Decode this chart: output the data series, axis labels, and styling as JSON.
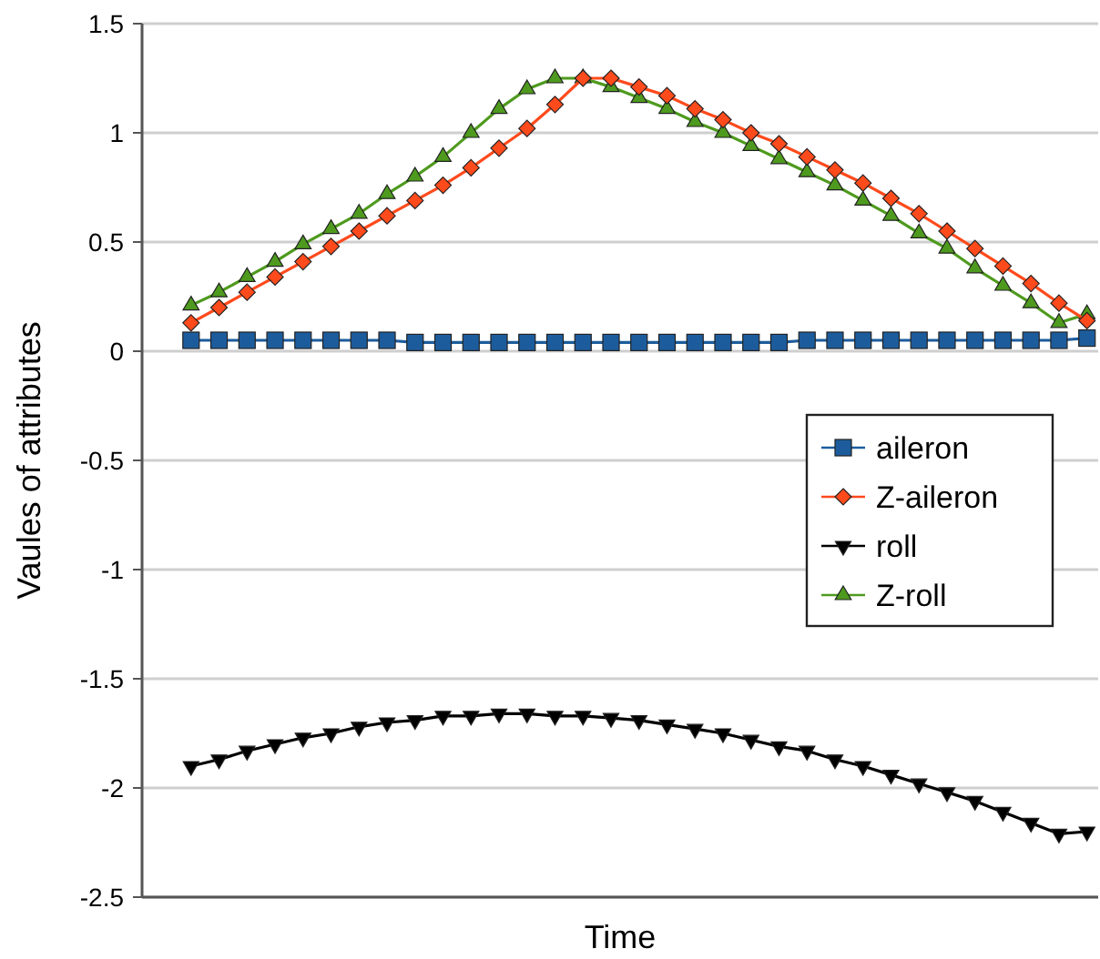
{
  "chart_data": {
    "type": "line",
    "xlabel": "Time",
    "ylabel": "Vaules of attributes",
    "categories": [
      null,
      null,
      null,
      null,
      null,
      null,
      null,
      null,
      null,
      null,
      null,
      null,
      null,
      null,
      null,
      null,
      null,
      null,
      null,
      null,
      null,
      null,
      null,
      null,
      null,
      null,
      null,
      null,
      null,
      null,
      null,
      null,
      null
    ],
    "ylim": [
      -2.5,
      1.5
    ],
    "yticks": [
      -2.5,
      -2,
      -1.5,
      -1,
      -0.5,
      0,
      0.5,
      1,
      1.5
    ],
    "grid": "y",
    "legend": "right",
    "line_style": "solid",
    "series": [
      {
        "name": "aileron",
        "color": "#1d5c9c",
        "marker": "square",
        "values": [
          0.05,
          0.05,
          0.05,
          0.05,
          0.05,
          0.05,
          0.05,
          0.05,
          0.04,
          0.04,
          0.04,
          0.04,
          0.04,
          0.04,
          0.04,
          0.04,
          0.04,
          0.04,
          0.04,
          0.04,
          0.04,
          0.04,
          0.05,
          0.05,
          0.05,
          0.05,
          0.05,
          0.05,
          0.05,
          0.05,
          0.05,
          0.05,
          0.06
        ]
      },
      {
        "name": "Z-aileron",
        "color": "#ff4a1c",
        "marker": "diamond",
        "values": [
          0.13,
          0.2,
          0.27,
          0.34,
          0.41,
          0.48,
          0.55,
          0.62,
          0.69,
          0.76,
          0.84,
          0.93,
          1.02,
          1.13,
          1.25,
          1.25,
          1.21,
          1.17,
          1.11,
          1.06,
          1.0,
          0.95,
          0.89,
          0.83,
          0.77,
          0.7,
          0.63,
          0.55,
          0.47,
          0.39,
          0.31,
          0.22,
          0.14
        ]
      },
      {
        "name": "roll",
        "color": "#000000",
        "marker": "triangle-down",
        "values": [
          -1.9,
          -1.87,
          -1.83,
          -1.8,
          -1.77,
          -1.75,
          -1.72,
          -1.7,
          -1.69,
          -1.67,
          -1.67,
          -1.66,
          -1.66,
          -1.67,
          -1.67,
          -1.68,
          -1.69,
          -1.71,
          -1.73,
          -1.75,
          -1.78,
          -1.81,
          -1.83,
          -1.87,
          -1.9,
          -1.94,
          -1.98,
          -2.02,
          -2.06,
          -2.11,
          -2.16,
          -2.21,
          -2.2
        ]
      },
      {
        "name": "Z-roll",
        "color": "#4e9a1e",
        "marker": "triangle",
        "values": [
          0.21,
          0.27,
          0.34,
          0.41,
          0.49,
          0.56,
          0.63,
          0.72,
          0.8,
          0.89,
          1.0,
          1.11,
          1.2,
          1.25,
          1.25,
          1.21,
          1.16,
          1.11,
          1.05,
          1.0,
          0.94,
          0.88,
          0.82,
          0.76,
          0.69,
          0.62,
          0.54,
          0.47,
          0.38,
          0.3,
          0.22,
          0.13,
          0.17
        ]
      }
    ]
  }
}
